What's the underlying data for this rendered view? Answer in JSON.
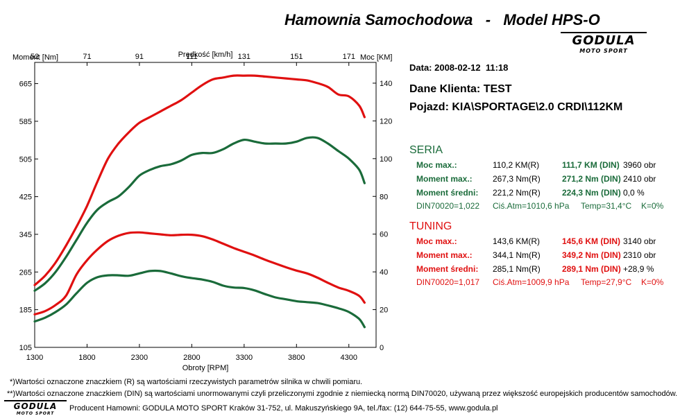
{
  "header": {
    "title": "Hamownia Samochodowa   -   Model HPS-O",
    "brand": "GODULA",
    "brand_sub": "MOTO SPORT"
  },
  "info": {
    "date": "Data: 2008-02-12  11:18",
    "client": "Dane Klienta: TEST",
    "vehicle": "Pojazd: KIA\\SPORTAGE\\2.0 CRDI\\112KM"
  },
  "seria": {
    "title": "SERIA",
    "rows": [
      {
        "label": "Moc max.:",
        "r": "110,2 KM(R)",
        "din": "111,7 KM (DIN)",
        "extra": "3960 obr"
      },
      {
        "label": "Moment max.:",
        "r": "267,3 Nm(R)",
        "din": "271,2 Nm (DIN)",
        "extra": "2410 obr"
      },
      {
        "label": "Moment średni:",
        "r": "221,2 Nm(R)",
        "din": "224,3 Nm (DIN)",
        "extra": "0,0 %"
      }
    ],
    "din": "DIN70020=1,022",
    "atm": "Ciś.Atm=1010,6 hPa",
    "temp": "Temp=31,4°C",
    "k": "K=0%"
  },
  "tuning": {
    "title": "TUNING",
    "rows": [
      {
        "label": "Moc max.:",
        "r": "143,6 KM(R)",
        "din": "145,6 KM (DIN)",
        "extra": "3140 obr"
      },
      {
        "label": "Moment max.:",
        "r": "344,1 Nm(R)",
        "din": "349,2 Nm (DIN)",
        "extra": "2310 obr"
      },
      {
        "label": "Moment średni:",
        "r": "285,1 Nm(R)",
        "din": "289,1 Nm (DIN)",
        "extra": "+28,9 %"
      }
    ],
    "din": "DIN70020=1,017",
    "atm": "Ciś.Atm=1009,9 hPa",
    "temp": "Temp=27,9°C",
    "k": "K=0%"
  },
  "footnotes": {
    "note1": "*)Wartości oznaczone znaczkiem (R) są wartościami rzeczywistych parametrów silnika w chwili pomiaru.",
    "note2": "**)Wartości oznaczone znaczkiem (DIN) są wartościami unormowanymi czyli przeliczonymi zgodnie z niemiecką normą DIN70020, używaną przez większość europejskich producentów samochodów.",
    "producer": "Producent Hamowni: GODULA MOTO SPORT Kraków 31-752, ul. Makuszyńskiego 9A, tel./fax: (12) 644-75-55, www.godula.pl"
  },
  "colors": {
    "seria": "#1a6b3a",
    "tuning": "#e01010"
  },
  "chart_data": {
    "type": "line",
    "xlabel": "Obroty [RPM]",
    "x_ticks": [
      1300,
      1800,
      2300,
      2800,
      3300,
      3800,
      4300
    ],
    "xlim": [
      1300,
      4560
    ],
    "top_axis_label": "Prędkość [km/h]",
    "top_ticks": [
      "52",
      "71",
      "91",
      "111",
      "131",
      "151",
      "171"
    ],
    "top_tick_rpm": [
      1300,
      1800,
      2300,
      2800,
      3300,
      3800,
      4300
    ],
    "y_left_label": "Moment [Nm]",
    "y_left_ticks": [
      105,
      185,
      265,
      345,
      425,
      505,
      585,
      665
    ],
    "y_left_lim": [
      105,
      710
    ],
    "y_right_label": "Moc [KM]",
    "y_right_ticks": [
      0,
      20,
      40,
      60,
      80,
      100,
      120,
      140
    ],
    "y_right_lim": [
      0,
      151
    ],
    "series": [
      {
        "name": "TUNING Moc",
        "color": "#e01010",
        "axis": "right",
        "x": [
          1300,
          1400,
          1500,
          1600,
          1700,
          1800,
          1900,
          2000,
          2100,
          2200,
          2300,
          2400,
          2500,
          2600,
          2700,
          2800,
          2900,
          3000,
          3100,
          3200,
          3300,
          3400,
          3500,
          3600,
          3700,
          3800,
          3900,
          4000,
          4100,
          4200,
          4300,
          4400,
          4450
        ],
        "y": [
          33,
          38,
          45,
          54,
          64,
          75,
          88,
          100,
          108,
          114,
          119,
          122,
          125,
          128,
          131,
          135,
          139,
          142,
          143,
          144,
          144,
          144,
          143.5,
          143,
          142.5,
          142,
          141.5,
          140,
          138,
          134,
          133,
          128,
          122
        ]
      },
      {
        "name": "SERIA Moc",
        "color": "#1a6b3a",
        "axis": "right",
        "x": [
          1300,
          1400,
          1500,
          1600,
          1700,
          1800,
          1900,
          2000,
          2100,
          2200,
          2300,
          2400,
          2500,
          2600,
          2700,
          2800,
          2900,
          3000,
          3100,
          3200,
          3300,
          3400,
          3500,
          3600,
          3700,
          3800,
          3900,
          4000,
          4100,
          4200,
          4300,
          4400,
          4450
        ],
        "y": [
          30,
          34,
          40,
          48,
          57,
          66,
          73,
          77,
          80,
          85,
          91,
          94,
          96,
          97,
          99,
          102,
          103,
          103,
          105,
          108,
          110,
          109,
          108,
          108,
          108,
          109,
          111,
          111,
          108,
          104,
          100,
          94,
          87
        ]
      },
      {
        "name": "TUNING Moment",
        "color": "#e01010",
        "axis": "left",
        "x": [
          1300,
          1400,
          1500,
          1600,
          1700,
          1800,
          1900,
          2000,
          2100,
          2200,
          2300,
          2400,
          2500,
          2600,
          2700,
          2800,
          2900,
          3000,
          3100,
          3200,
          3300,
          3400,
          3500,
          3600,
          3700,
          3800,
          3900,
          4000,
          4100,
          4200,
          4300,
          4400,
          4450
        ],
        "y": [
          175,
          182,
          195,
          215,
          260,
          290,
          313,
          331,
          342,
          348,
          349,
          347,
          345,
          343,
          344,
          344,
          341,
          334,
          325,
          316,
          308,
          300,
          291,
          283,
          275,
          268,
          262,
          253,
          242,
          232,
          225,
          214,
          200
        ]
      },
      {
        "name": "SERIA Moment",
        "color": "#1a6b3a",
        "axis": "left",
        "x": [
          1300,
          1400,
          1500,
          1600,
          1700,
          1800,
          1900,
          2000,
          2100,
          2200,
          2300,
          2400,
          2500,
          2600,
          2700,
          2800,
          2900,
          3000,
          3100,
          3200,
          3300,
          3400,
          3500,
          3600,
          3700,
          3800,
          3900,
          4000,
          4100,
          4200,
          4300,
          4400,
          4450
        ],
        "y": [
          160,
          168,
          180,
          196,
          220,
          242,
          254,
          258,
          258,
          257,
          262,
          267,
          267,
          262,
          256,
          252,
          249,
          244,
          236,
          232,
          231,
          226,
          218,
          211,
          207,
          203,
          201,
          199,
          194,
          188,
          180,
          165,
          148
        ]
      }
    ]
  }
}
